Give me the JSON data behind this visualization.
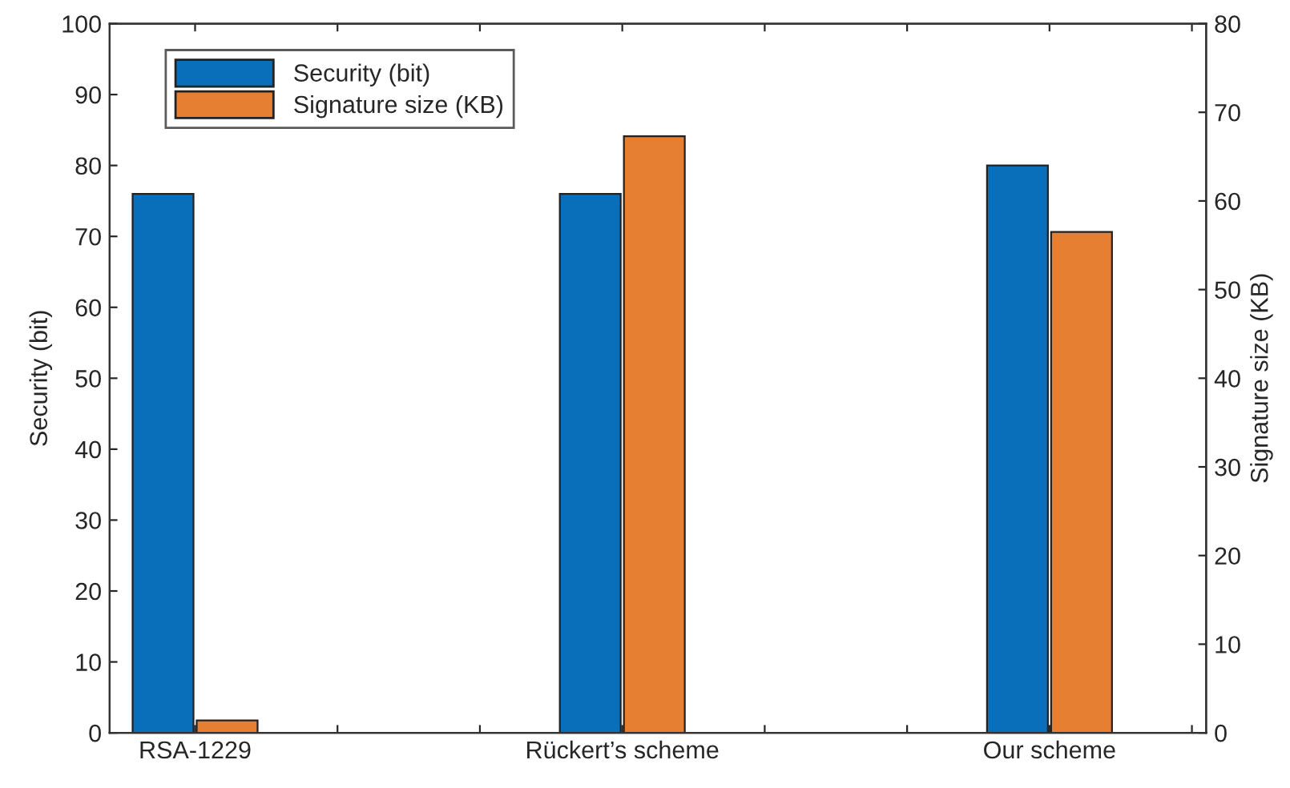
{
  "chart_data": {
    "type": "bar",
    "categories": [
      "RSA-1229",
      null,
      null,
      "Rückert’s scheme",
      null,
      null,
      "Our scheme",
      null
    ],
    "series": [
      {
        "name": "Security (bit)",
        "color": "#0a6fba",
        "values": [
          76,
          null,
          0,
          76,
          null,
          0,
          80,
          null
        ]
      },
      {
        "name": "Signature size (KB)",
        "color": "#e77f33",
        "axis": "y2",
        "values": [
          1.4,
          null,
          0,
          67.3,
          null,
          0,
          56.5,
          null
        ]
      }
    ],
    "ylabel": "Security (bit)",
    "y2label": "Signature size (KB)",
    "ylim": [
      0,
      100
    ],
    "yticks": [
      0,
      10,
      20,
      30,
      40,
      50,
      60,
      70,
      80,
      90,
      100
    ],
    "y2lim": [
      0,
      80
    ],
    "y2ticks": [
      0,
      10,
      20,
      30,
      40,
      50,
      60,
      70,
      80
    ],
    "legend": "top left",
    "grid": false
  }
}
